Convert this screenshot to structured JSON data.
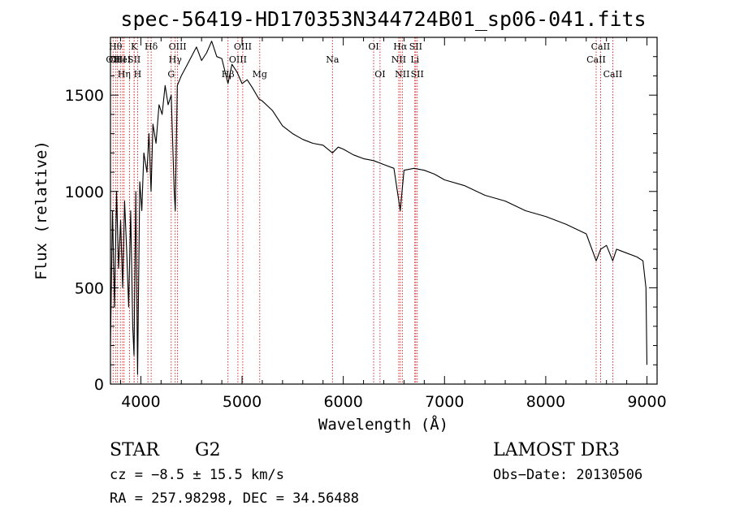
{
  "chart_data": {
    "type": "line",
    "title": "spec-56419-HD170353N344724B01_sp06-041.fits",
    "xlabel": "Wavelength (Å)",
    "ylabel": "Flux (relative)",
    "xlim": [
      3700,
      9100
    ],
    "ylim": [
      0,
      1800
    ],
    "xticks": [
      4000,
      5000,
      6000,
      7000,
      8000,
      9000
    ],
    "yticks": [
      0,
      500,
      1000,
      1500
    ],
    "grid": false,
    "series": [
      {
        "x": [
          3700,
          3720,
          3740,
          3760,
          3780,
          3800,
          3820,
          3840,
          3860,
          3880,
          3900,
          3920,
          3933,
          3950,
          3968,
          3990,
          4010,
          4030,
          4060,
          4080,
          4101,
          4120,
          4150,
          4180,
          4210,
          4240,
          4270,
          4300,
          4330,
          4340,
          4360,
          4400,
          4450,
          4500,
          4550,
          4600,
          4650,
          4700,
          4750,
          4800,
          4861,
          4900,
          4950,
          5000,
          5050,
          5100,
          5167,
          5200,
          5300,
          5400,
          5500,
          5600,
          5700,
          5800,
          5893,
          5950,
          6000,
          6100,
          6200,
          6300,
          6400,
          6500,
          6563,
          6600,
          6700,
          6800,
          6900,
          7000,
          7200,
          7400,
          7600,
          7800,
          8000,
          8200,
          8400,
          8498,
          8542,
          8600,
          8662,
          8700,
          8800,
          8900,
          8960,
          8990,
          9000
        ],
        "y": [
          200,
          900,
          400,
          1000,
          600,
          850,
          500,
          950,
          700,
          400,
          900,
          300,
          150,
          1000,
          50,
          1050,
          900,
          1200,
          1100,
          1300,
          1000,
          1350,
          1250,
          1450,
          1400,
          1550,
          1450,
          1500,
          1000,
          900,
          1550,
          1600,
          1650,
          1700,
          1750,
          1680,
          1720,
          1780,
          1700,
          1690,
          1560,
          1660,
          1620,
          1560,
          1580,
          1540,
          1480,
          1470,
          1420,
          1340,
          1300,
          1270,
          1250,
          1240,
          1200,
          1230,
          1220,
          1190,
          1170,
          1160,
          1140,
          1120,
          900,
          1110,
          1120,
          1110,
          1090,
          1060,
          1030,
          980,
          950,
          900,
          870,
          830,
          780,
          640,
          700,
          720,
          640,
          700,
          680,
          660,
          640,
          500,
          100
        ]
      }
    ],
    "line_ids": [
      {
        "w": 3726,
        "label": "OII",
        "row": 2
      },
      {
        "w": 3750,
        "label": "Hθ",
        "row": 1
      },
      {
        "w": 3770,
        "label": "OIII",
        "row": 2
      },
      {
        "w": 3798,
        "label": "",
        "row": 0
      },
      {
        "w": 3820,
        "label": "HeI",
        "row": 2
      },
      {
        "w": 3835,
        "label": "Hη",
        "row": 3
      },
      {
        "w": 3889,
        "label": "",
        "row": 0
      },
      {
        "w": 3934,
        "label": "K",
        "row": 1
      },
      {
        "w": 3934,
        "label": "SII",
        "row": 2
      },
      {
        "w": 3968,
        "label": "H",
        "row": 3
      },
      {
        "w": 4070,
        "label": "",
        "row": 0
      },
      {
        "w": 4102,
        "label": "Hδ",
        "row": 1
      },
      {
        "w": 4300,
        "label": "G",
        "row": 3
      },
      {
        "w": 4340,
        "label": "Hγ",
        "row": 2
      },
      {
        "w": 4363,
        "label": "OIII",
        "row": 1
      },
      {
        "w": 4861,
        "label": "Hβ",
        "row": 3
      },
      {
        "w": 4959,
        "label": "OIII",
        "row": 2
      },
      {
        "w": 5007,
        "label": "OIII",
        "row": 1
      },
      {
        "w": 5175,
        "label": "Mg",
        "row": 3
      },
      {
        "w": 5893,
        "label": "Na",
        "row": 2
      },
      {
        "w": 6300,
        "label": "OI",
        "row": 1
      },
      {
        "w": 6363,
        "label": "OI",
        "row": 3
      },
      {
        "w": 6548,
        "label": "NII",
        "row": 2
      },
      {
        "w": 6563,
        "label": "Hα",
        "row": 1
      },
      {
        "w": 6583,
        "label": "NII",
        "row": 3
      },
      {
        "w": 6707,
        "label": "Li",
        "row": 2
      },
      {
        "w": 6716,
        "label": "SII",
        "row": 1
      },
      {
        "w": 6731,
        "label": "SII",
        "row": 3
      },
      {
        "w": 8498,
        "label": "CaII",
        "row": 2
      },
      {
        "w": 8542,
        "label": "CaII",
        "row": 1
      },
      {
        "w": 8662,
        "label": "CaII",
        "row": 3
      }
    ]
  },
  "info": {
    "object_class": "STAR",
    "subclass": "G2",
    "survey": "LAMOST DR3",
    "cz": "cz = −8.5 ± 15.5 km/s",
    "obs_date": "Obs−Date: 20130506",
    "coords": "RA = 257.98298, DEC =  34.56488"
  },
  "colors": {
    "spectrum": "#000000",
    "line_markers": "#cc0000",
    "axes": "#000000"
  }
}
